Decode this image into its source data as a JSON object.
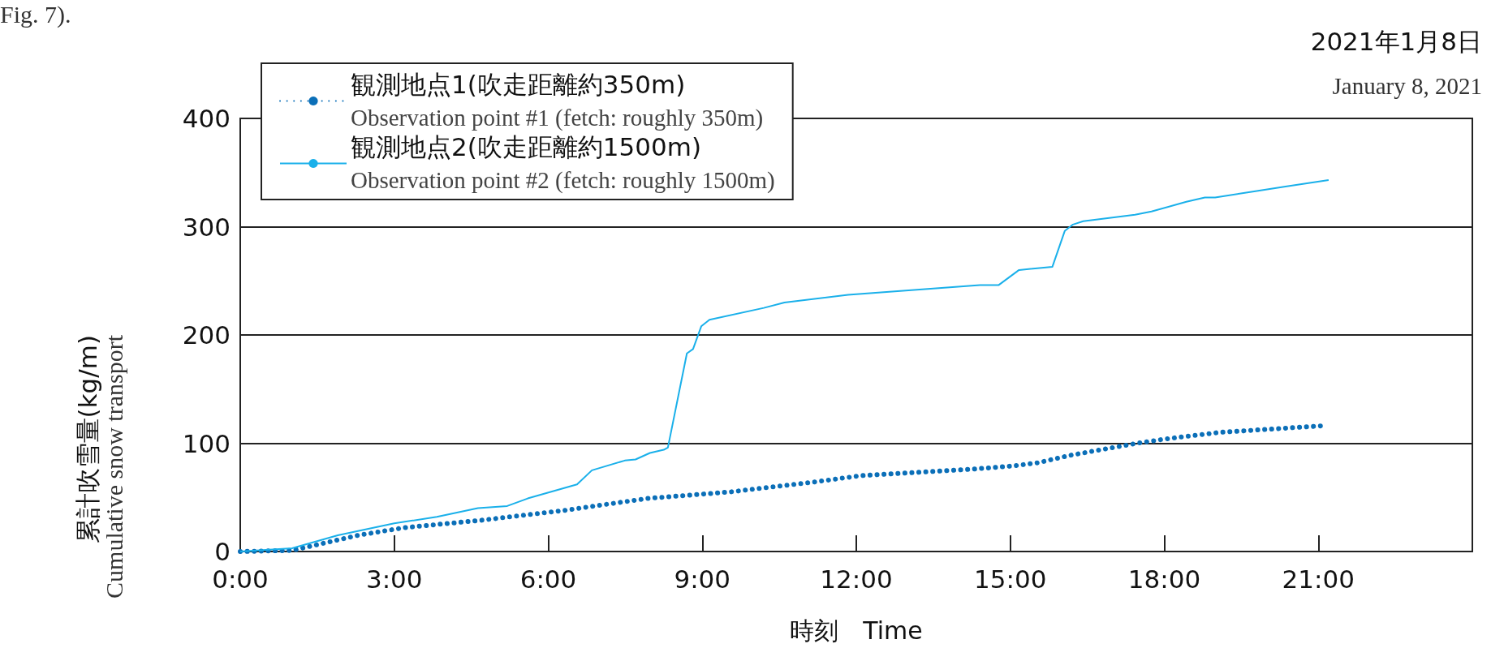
{
  "chart_data": {
    "type": "line",
    "title": "2021年1月8日",
    "subtitle": "January 8, 2021",
    "xlabel": "時刻　Time",
    "ylabel": "累計吹雪量(kg/m)\nCumulative snow transport",
    "annotations": [
      "Fig. 7)."
    ],
    "xlim": [
      0,
      24
    ],
    "xticks": [
      {
        "value": 0,
        "label": "0:00"
      },
      {
        "value": 3,
        "label": "3:00"
      },
      {
        "value": 6,
        "label": "6:00"
      },
      {
        "value": 9,
        "label": "9:00"
      },
      {
        "value": 12,
        "label": "12:00"
      },
      {
        "value": 15,
        "label": "15:00"
      },
      {
        "value": 18,
        "label": "18:00"
      },
      {
        "value": 21,
        "label": "21:00"
      }
    ],
    "ylim": [
      0,
      400
    ],
    "yticks": [
      0,
      100,
      200,
      300,
      400
    ],
    "grid": "y",
    "legend": "top left",
    "marker": "none",
    "series": [
      {
        "name": "観測地点1(吹走距離約350m)\nObservation point #1 (fetch: roughly 350m)",
        "color": "#0b6fb8",
        "line_style": "dotted",
        "x": [
          0,
          1.01,
          2.3,
          3.19,
          4.72,
          6.32,
          7.93,
          9.54,
          11.15,
          12.08,
          14.25,
          15.05,
          15.54,
          16.18,
          17.47,
          18.03,
          19.07,
          21.04
        ],
        "values": [
          0,
          1,
          15,
          22,
          29,
          38,
          49,
          55,
          64,
          70,
          76,
          79,
          82,
          89,
          100,
          104,
          110,
          116
        ]
      },
      {
        "name": "観測地点2(吹走距離約1500m)\nObservation point #2 (fetch: roughly 1500m)",
        "color": "#1ab0ea",
        "line_style": "solid",
        "x": [
          0,
          1.01,
          1.9,
          3.0,
          3.83,
          4.63,
          5.2,
          5.6,
          6.56,
          6.85,
          7.49,
          7.7,
          7.98,
          8.25,
          8.33,
          8.7,
          8.82,
          8.98,
          9.14,
          10.2,
          10.6,
          11.84,
          14.41,
          14.77,
          15.17,
          15.82,
          16.06,
          16.22,
          16.42,
          17.43,
          17.75,
          18.43,
          18.79,
          18.99,
          19.8,
          20.36,
          21.2
        ],
        "values": [
          0,
          3,
          15,
          26,
          32,
          40,
          42,
          49,
          62,
          75,
          84,
          85,
          91,
          94,
          96,
          183,
          187,
          208,
          214,
          225,
          230,
          237,
          246,
          246,
          260,
          263,
          296,
          302,
          305,
          311,
          314,
          323,
          327,
          327,
          333,
          337,
          343
        ]
      }
    ]
  }
}
